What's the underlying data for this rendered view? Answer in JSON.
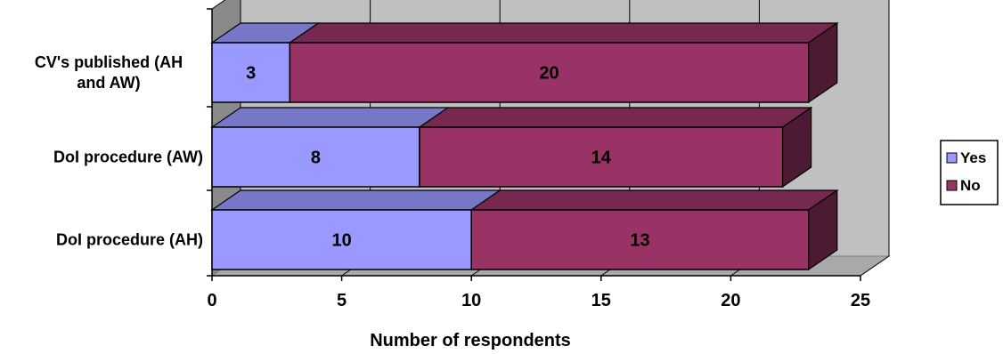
{
  "chart_data": {
    "type": "bar",
    "orientation": "horizontal",
    "stacked": true,
    "three_d": true,
    "categories": [
      "CV's published (AH and AW)",
      "DoI procedure (AW)",
      "DoI procedure (AH)"
    ],
    "category_lines": [
      [
        "CV's published (AH",
        "and AW)"
      ],
      [
        "DoI procedure (AW)"
      ],
      [
        "DoI procedure (AH)"
      ]
    ],
    "series": [
      {
        "name": "Yes",
        "values": [
          3,
          8,
          10
        ],
        "color": "#9999ff"
      },
      {
        "name": "No",
        "values": [
          20,
          14,
          13
        ],
        "color": "#993366"
      }
    ],
    "xlabel": "Number of respondents",
    "ylabel": "",
    "xlim": [
      0,
      25
    ],
    "xticks": [
      0,
      5,
      10,
      15,
      20,
      25
    ],
    "grid": true,
    "wall_color": "#c0c0c0",
    "legend_position": "right"
  }
}
